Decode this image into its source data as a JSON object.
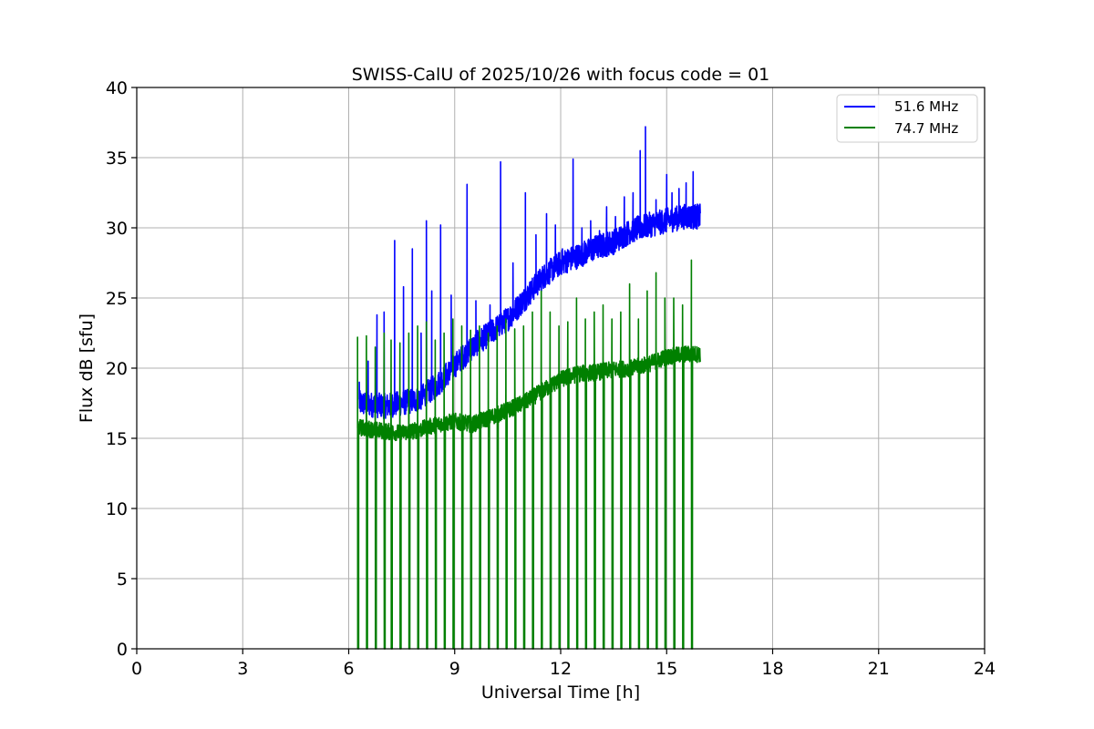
{
  "chart_data": {
    "type": "line",
    "title": "SWISS-CalU of 2025/10/26 with focus code = 01",
    "xlabel": "Universal Time [h]",
    "ylabel": "Flux dB [sfu]",
    "xlim": [
      0,
      24
    ],
    "ylim": [
      0,
      40
    ],
    "xticks": [
      0,
      3,
      6,
      9,
      12,
      15,
      18,
      21,
      24
    ],
    "yticks": [
      0,
      5,
      10,
      15,
      20,
      25,
      30,
      35,
      40
    ],
    "grid": true,
    "legend_position": "top-right",
    "series": [
      {
        "name": "51.6 MHz",
        "color": "#0000ff",
        "baseline": [
          [
            6.3,
            17.5
          ],
          [
            7.0,
            17.3
          ],
          [
            7.5,
            17.5
          ],
          [
            8.0,
            17.8
          ],
          [
            8.5,
            18.8
          ],
          [
            9.0,
            20.2
          ],
          [
            9.5,
            21.5
          ],
          [
            10.0,
            22.5
          ],
          [
            10.5,
            23.5
          ],
          [
            11.0,
            25.0
          ],
          [
            11.5,
            26.5
          ],
          [
            12.0,
            27.5
          ],
          [
            12.5,
            28.0
          ],
          [
            13.0,
            28.6
          ],
          [
            13.5,
            29.0
          ],
          [
            14.0,
            29.8
          ],
          [
            14.5,
            30.2
          ],
          [
            15.0,
            30.5
          ],
          [
            15.5,
            30.8
          ],
          [
            15.95,
            30.8
          ]
        ],
        "spikes": [
          [
            6.3,
            19.0
          ],
          [
            6.55,
            20.5
          ],
          [
            6.8,
            23.8
          ],
          [
            7.0,
            24.0
          ],
          [
            7.3,
            29.1
          ],
          [
            7.55,
            25.8
          ],
          [
            7.8,
            28.5
          ],
          [
            8.05,
            22.5
          ],
          [
            8.2,
            30.5
          ],
          [
            8.35,
            25.5
          ],
          [
            8.6,
            30.2
          ],
          [
            8.9,
            25.2
          ],
          [
            9.35,
            33.1
          ],
          [
            9.6,
            24.8
          ],
          [
            10.0,
            24.5
          ],
          [
            10.3,
            34.7
          ],
          [
            10.65,
            27.5
          ],
          [
            11.0,
            32.5
          ],
          [
            11.3,
            29.5
          ],
          [
            11.6,
            31.0
          ],
          [
            11.85,
            30.2
          ],
          [
            12.05,
            28.5
          ],
          [
            12.35,
            34.9
          ],
          [
            12.6,
            30.0
          ],
          [
            12.85,
            30.5
          ],
          [
            13.1,
            29.8
          ],
          [
            13.3,
            31.5
          ],
          [
            13.55,
            30.8
          ],
          [
            13.8,
            32.2
          ],
          [
            14.05,
            32.5
          ],
          [
            14.25,
            35.5
          ],
          [
            14.4,
            37.2
          ],
          [
            14.7,
            32.0
          ],
          [
            15.0,
            33.8
          ],
          [
            15.15,
            32.5
          ],
          [
            15.35,
            32.8
          ],
          [
            15.55,
            33.2
          ],
          [
            15.75,
            34.0
          ]
        ]
      },
      {
        "name": "74.7 MHz",
        "color": "#008000",
        "baseline": [
          [
            6.25,
            15.8
          ],
          [
            7.0,
            15.5
          ],
          [
            7.5,
            15.4
          ],
          [
            8.0,
            15.6
          ],
          [
            8.5,
            16.0
          ],
          [
            9.0,
            16.2
          ],
          [
            9.5,
            16.0
          ],
          [
            10.0,
            16.5
          ],
          [
            10.5,
            17.0
          ],
          [
            11.0,
            17.6
          ],
          [
            11.5,
            18.4
          ],
          [
            12.0,
            19.2
          ],
          [
            12.5,
            19.6
          ],
          [
            13.0,
            19.7
          ],
          [
            13.5,
            19.9
          ],
          [
            14.0,
            20.0
          ],
          [
            14.5,
            20.3
          ],
          [
            15.0,
            20.8
          ],
          [
            15.5,
            21.0
          ],
          [
            15.95,
            21.0
          ]
        ],
        "pulse_times": [
          6.25,
          6.5,
          6.75,
          7.0,
          7.2,
          7.45,
          7.7,
          7.95,
          8.2,
          8.45,
          8.7,
          8.95,
          9.2,
          9.45,
          9.7,
          9.95,
          10.2,
          10.45,
          10.7,
          10.95,
          11.2,
          11.45,
          11.7,
          11.95,
          12.2,
          12.45,
          12.7,
          12.95,
          13.2,
          13.45,
          13.7,
          13.95,
          14.2,
          14.45,
          14.7,
          14.95,
          15.2,
          15.45,
          15.7
        ],
        "pulse_peaks": [
          22.2,
          22.3,
          21.5,
          22.5,
          22.0,
          21.8,
          22.5,
          23.0,
          23.3,
          22.0,
          22.5,
          23.5,
          23.0,
          22.7,
          23.0,
          22.5,
          23.0,
          23.5,
          22.8,
          23.0,
          24.0,
          25.5,
          24.0,
          23.0,
          23.3,
          25.0,
          23.5,
          24.0,
          24.5,
          23.5,
          24.0,
          26.0,
          23.5,
          25.5,
          26.8,
          25.0,
          25.0,
          24.5,
          27.7
        ]
      }
    ]
  }
}
